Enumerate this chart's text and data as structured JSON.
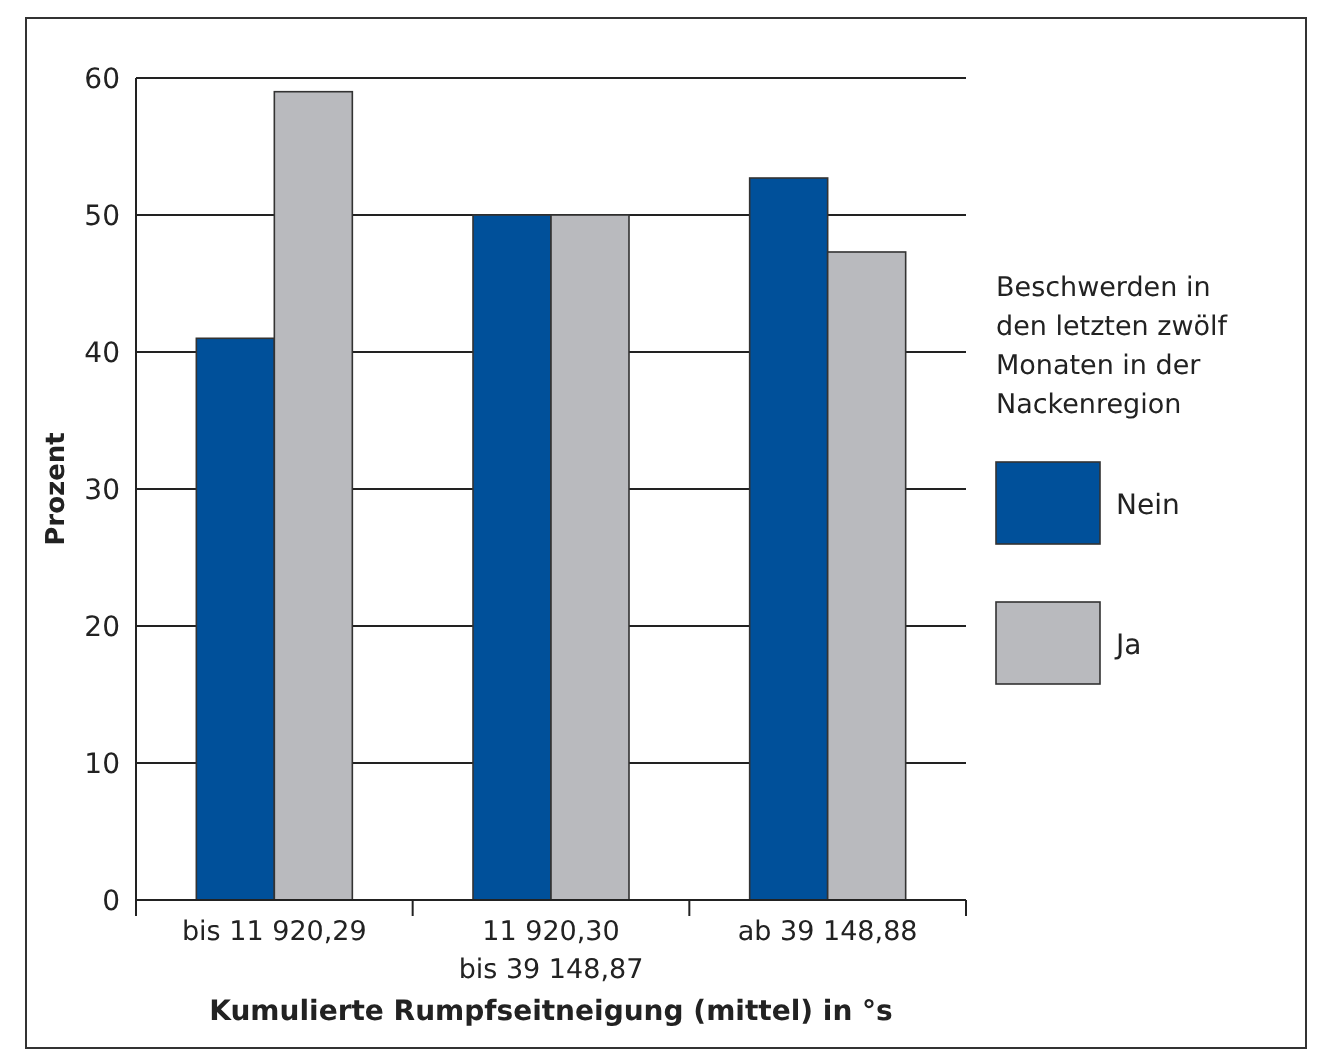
{
  "chart_data": {
    "type": "bar",
    "xlabel": "Kumulierte Rumpfseitneigung (mittel) in °s",
    "ylabel": "Prozent",
    "legend_title": "Beschwerden in\nden letzten zwölf\nMonaten in der\nNackenregion",
    "categories": [
      "bis 11 920,29",
      "11 920,30\nbis 39 148,87",
      "ab 39 148,88"
    ],
    "series": [
      {
        "name": "Nein",
        "color": "#00509a",
        "values": [
          41,
          50,
          52.7
        ]
      },
      {
        "name": "Ja",
        "color": "#b9babe",
        "values": [
          59,
          50,
          47.3
        ]
      }
    ],
    "ylim": [
      0,
      60
    ],
    "yticks": [
      0,
      10,
      20,
      30,
      40,
      50,
      60
    ],
    "grid": "y",
    "legend": "right"
  }
}
